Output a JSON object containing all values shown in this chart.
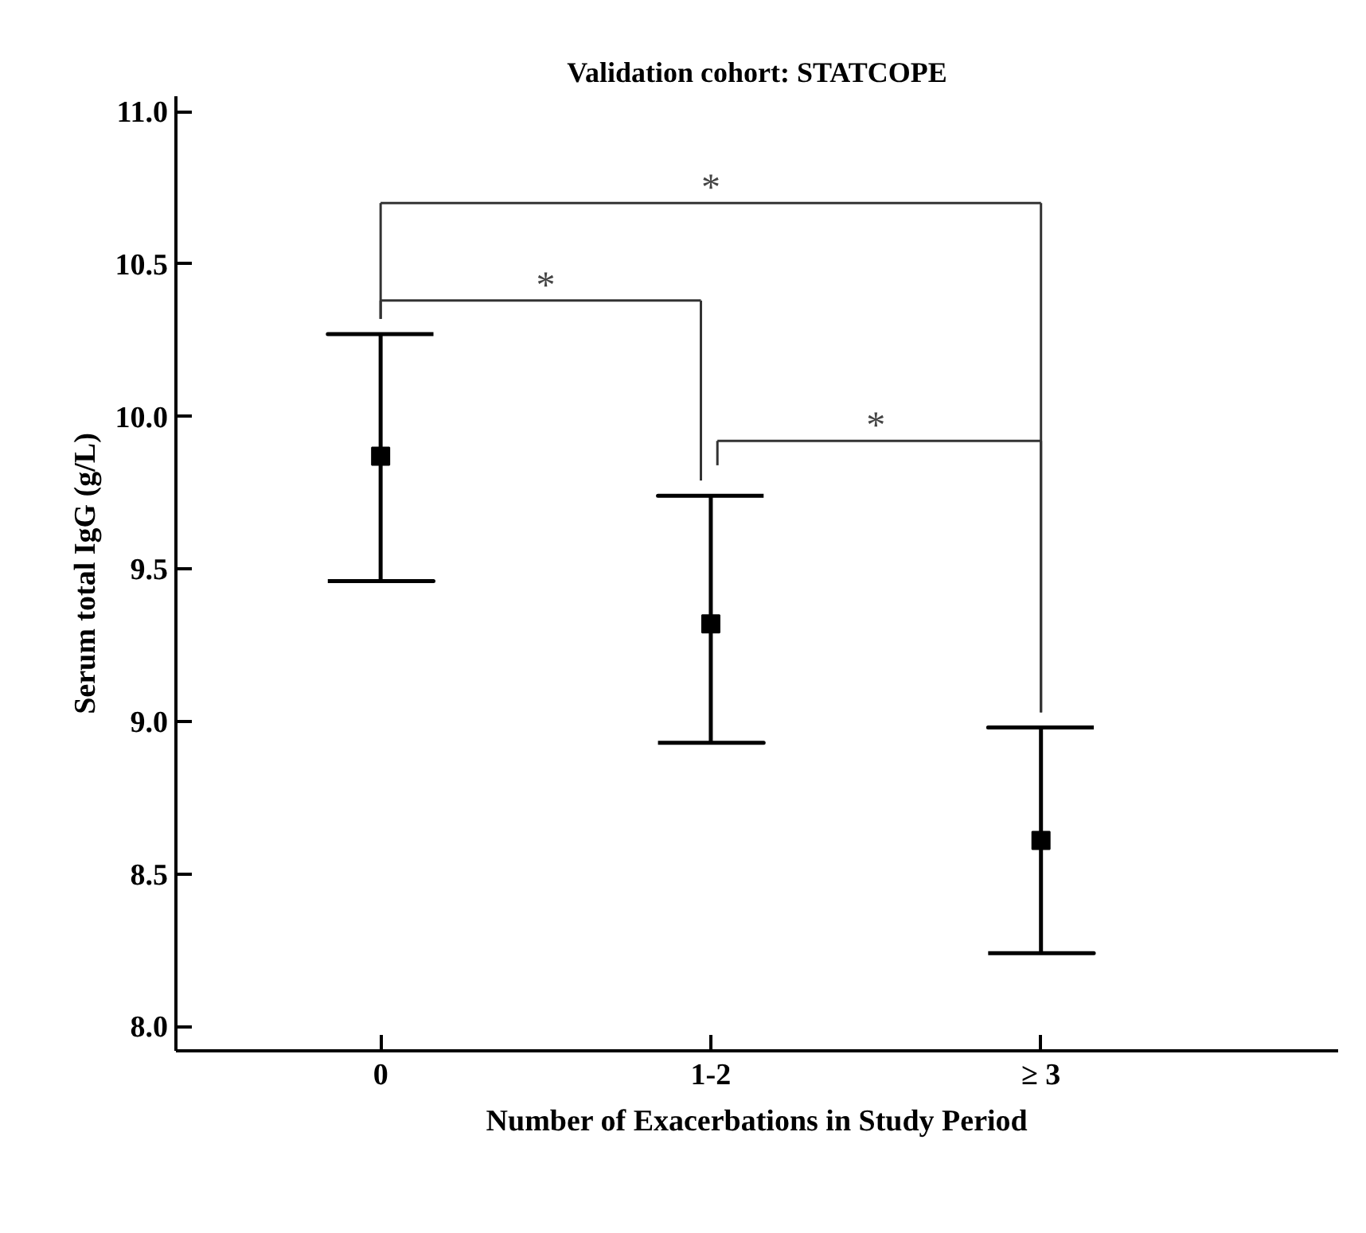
{
  "chart_data": {
    "type": "scatter",
    "title": "Validation cohort: STATCOPE",
    "xlabel": "Number of Exacerbations in Study Period",
    "ylabel": "Serum total IgG (g/L)",
    "categories": [
      "0",
      "1-2",
      "≥ 3"
    ],
    "values": [
      9.87,
      9.32,
      8.61
    ],
    "errors": [
      [
        9.46,
        10.27
      ],
      [
        8.93,
        9.74
      ],
      [
        8.24,
        8.98
      ]
    ],
    "color": "#000000",
    "marker": "square",
    "ylim": [
      7.92,
      11.05
    ],
    "yticks": [
      {
        "value": 8,
        "label": "8.0"
      },
      {
        "value": 8.5,
        "label": "8.5"
      },
      {
        "value": 9,
        "label": "9.0"
      },
      {
        "value": 9.5,
        "label": "9.5"
      },
      {
        "value": 10,
        "label": "10.0"
      },
      {
        "value": 10.5,
        "label": "10.5"
      },
      {
        "value": 11,
        "label": "11.0"
      }
    ],
    "annotations": [
      "*",
      "*",
      "*"
    ]
  }
}
